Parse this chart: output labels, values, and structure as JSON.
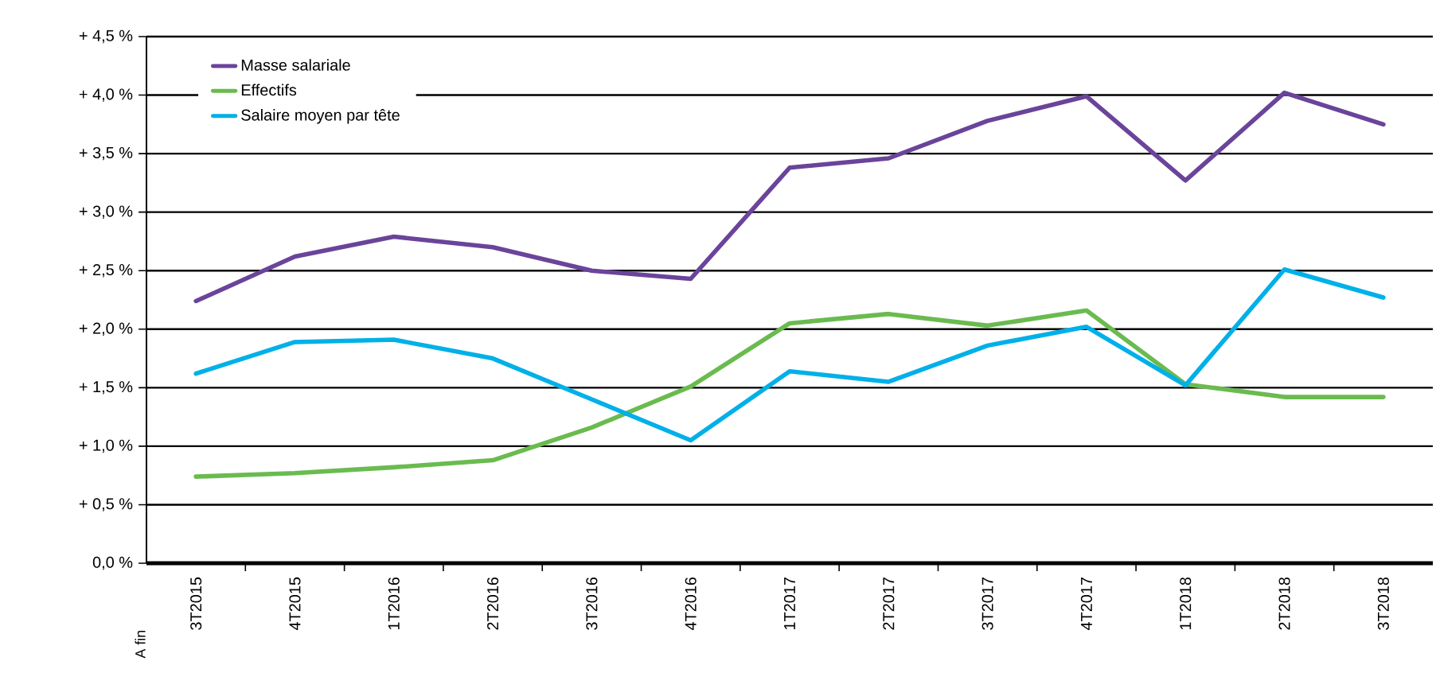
{
  "chart_data": {
    "type": "line",
    "annotations": [
      "A fin"
    ],
    "categories": [
      "3T2015",
      "4T2015",
      "1T2016",
      "2T2016",
      "3T2016",
      "4T2016",
      "1T2017",
      "2T2017",
      "3T2017",
      "4T2017",
      "1T2018",
      "2T2018",
      "3T2018"
    ],
    "series": [
      {
        "name": "Masse salariale",
        "color": "#6a449a",
        "values": [
          2.24,
          2.62,
          2.79,
          2.7,
          2.5,
          2.43,
          3.38,
          3.46,
          3.78,
          3.99,
          3.27,
          4.02,
          3.75
        ]
      },
      {
        "name": "Effectifs",
        "color": "#6abb4f",
        "values": [
          0.74,
          0.77,
          0.82,
          0.88,
          1.16,
          1.51,
          2.05,
          2.13,
          2.03,
          2.16,
          1.53,
          1.42,
          1.42
        ]
      },
      {
        "name": "Salaire moyen par tête",
        "color": "#00b0e8",
        "values": [
          1.62,
          1.89,
          1.91,
          1.75,
          1.4,
          1.05,
          1.64,
          1.55,
          1.86,
          2.02,
          1.52,
          2.51,
          2.27
        ]
      }
    ],
    "ylim": [
      0,
      4.5
    ],
    "yticks": [
      {
        "value": 0,
        "label": "0,0 %"
      },
      {
        "value": 0.5,
        "label": "+ 0,5 %"
      },
      {
        "value": 1,
        "label": "+ 1,0 %"
      },
      {
        "value": 1.5,
        "label": "+ 1,5 %"
      },
      {
        "value": 2,
        "label": "+ 2,0 %"
      },
      {
        "value": 2.5,
        "label": "+ 2,5 %"
      },
      {
        "value": 3,
        "label": "+ 3,0 %"
      },
      {
        "value": 3.5,
        "label": "+ 3,5 %"
      },
      {
        "value": 4,
        "label": "+ 4,0 %"
      },
      {
        "value": 4.5,
        "label": "+ 4,5 %"
      }
    ],
    "grid": "y",
    "legend": "top left",
    "marker": "none",
    "line_style": "solid"
  }
}
